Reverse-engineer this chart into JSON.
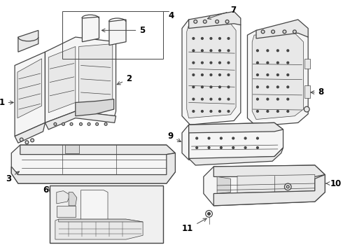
{
  "background_color": "#ffffff",
  "line_color": "#444444",
  "label_color": "#000000",
  "fill_light": "#f5f5f5",
  "fill_medium": "#e8e8e8",
  "fill_dark": "#d8d8d8",
  "fill_box": "#eeeeee",
  "lw_main": 0.9,
  "lw_detail": 0.5,
  "label_fs": 8.5,
  "figsize": [
    4.9,
    3.6
  ],
  "dpi": 100
}
